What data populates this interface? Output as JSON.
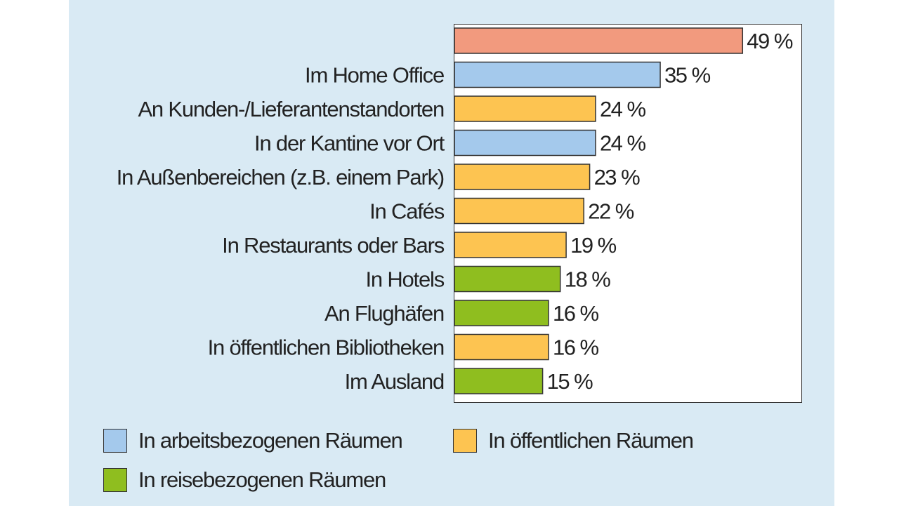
{
  "chart_data": {
    "type": "bar",
    "orientation": "horizontal",
    "categories": [
      "",
      "Im Home Office",
      "An Kunden-/Lieferantenstandorten",
      "In der Kantine vor Ort",
      "In Außenbereichen (z.B. einem Park)",
      "In Cafés",
      "In Restaurants oder Bars",
      "In Hotels",
      "An Flughäfen",
      "In öffentlichen Bibliotheken",
      "Im Ausland"
    ],
    "values": [
      49,
      35,
      24,
      24,
      23,
      22,
      19,
      18,
      16,
      16,
      15
    ],
    "value_labels": [
      "49 %",
      "35 %",
      "24 %",
      "24 %",
      "23 %",
      "22 %",
      "19 %",
      "18 %",
      "16 %",
      "16 %",
      "15 %"
    ],
    "bar_groups": [
      "total",
      "work",
      "public",
      "work",
      "public",
      "public",
      "public",
      "travel",
      "travel",
      "public",
      "travel"
    ],
    "xlim": [
      0,
      59
    ],
    "grid": false,
    "legend_position": "bottom"
  },
  "colors": {
    "total": "#f29a7e",
    "work": "#a4c9ec",
    "public": "#fdc451",
    "travel": "#8fbe1f",
    "panel": "#d9eaf4"
  },
  "legend": {
    "work": "In arbeitsbezogenen Räumen",
    "public": "In öffentlichen Räumen",
    "travel": "In reisebezogenen Räumen"
  }
}
